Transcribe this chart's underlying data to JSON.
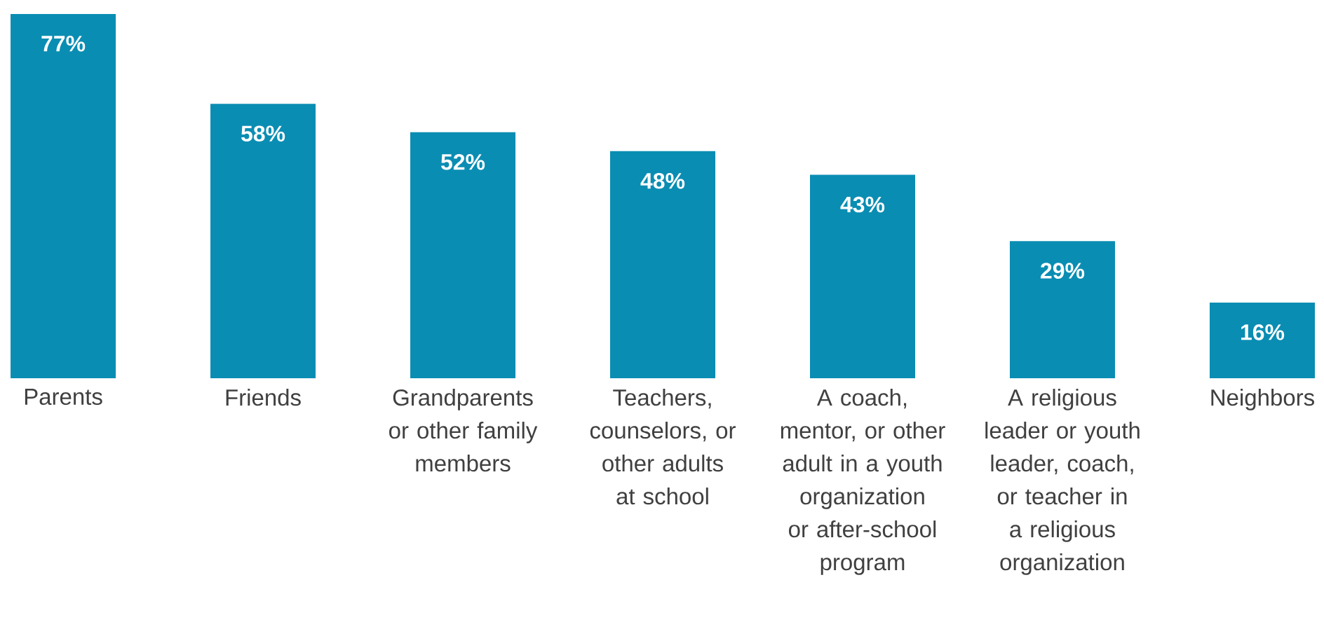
{
  "chart_data": {
    "type": "bar",
    "categories": [
      "Parents",
      "Friends",
      "Grandparents or other family members",
      "Teachers, counselors, or other adults at school",
      "A coach, mentor, or other adult in a youth organization or after-school program",
      "A religious leader or youth leader, coach, or teacher in a religious organization",
      "Neighbors"
    ],
    "values": [
      77,
      58,
      52,
      48,
      43,
      29,
      16
    ],
    "value_labels": [
      "77%",
      "58%",
      "52%",
      "48%",
      "43%",
      "29%",
      "16%"
    ],
    "color": "#0a8db3"
  }
}
